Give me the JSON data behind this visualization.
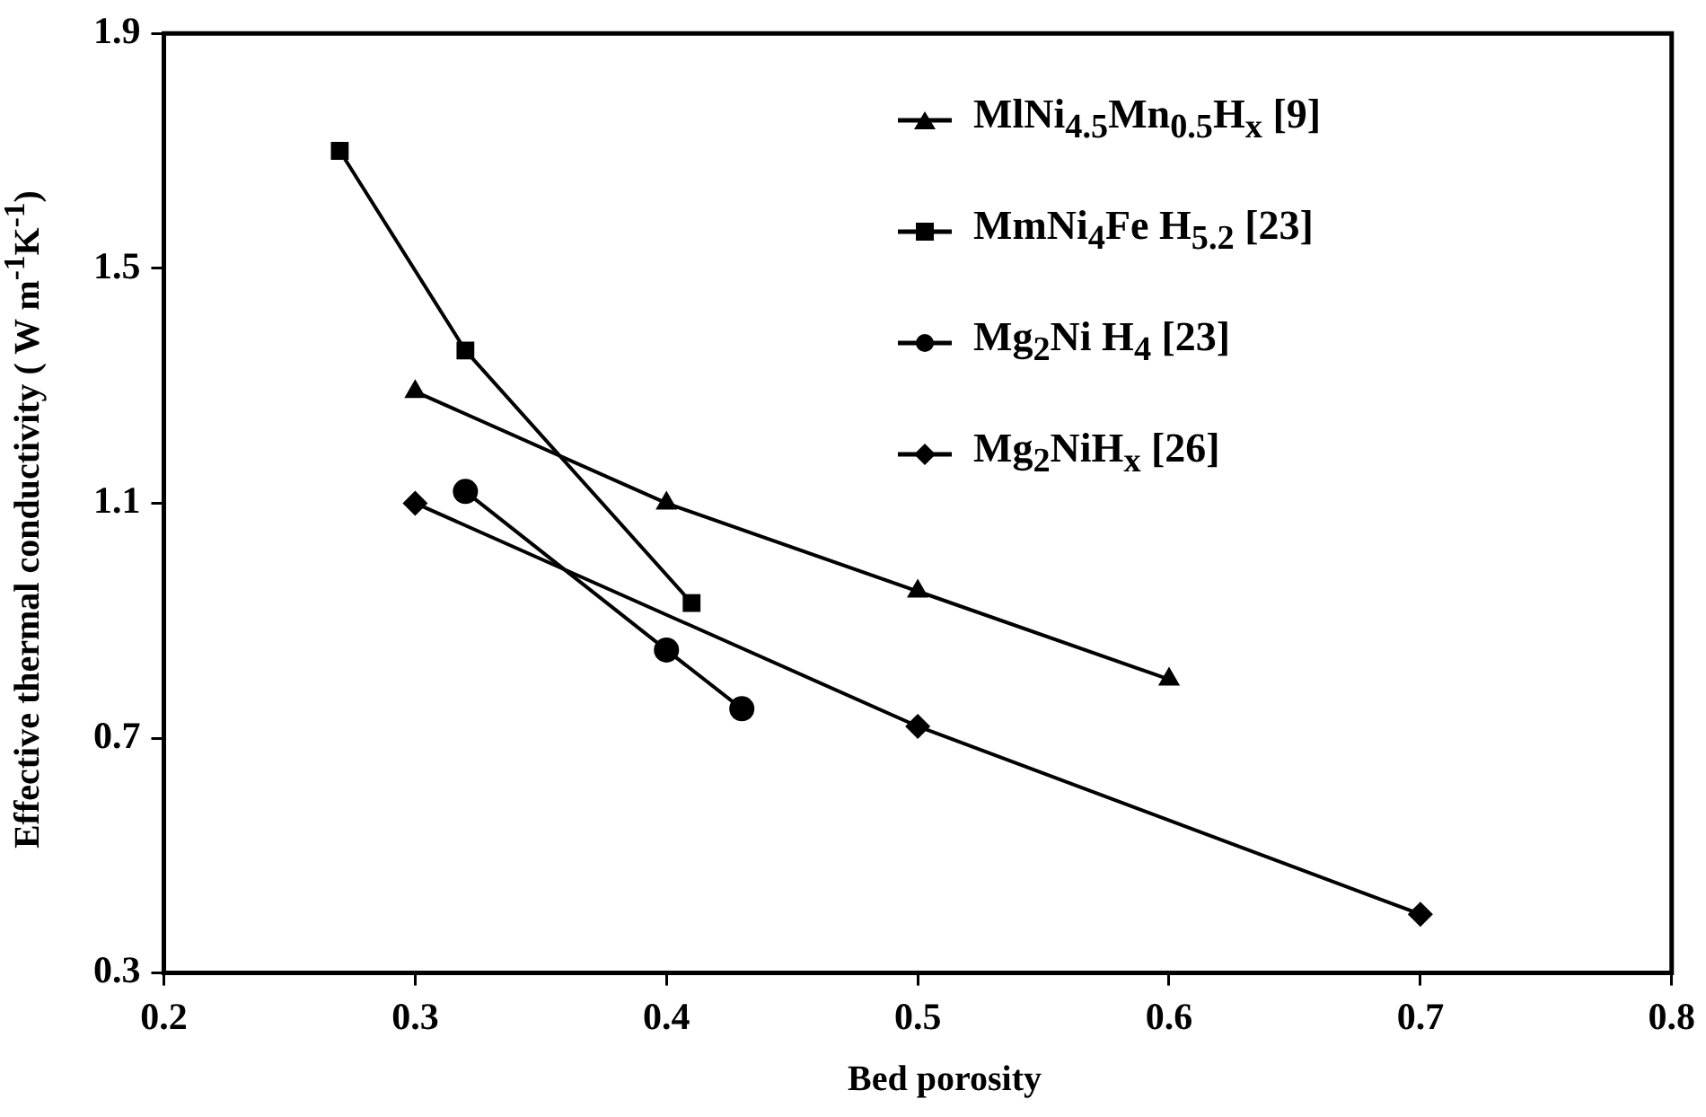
{
  "chart_data": {
    "type": "line",
    "xlabel": "Bed porosity",
    "ylabel": "Effective thermal conductivity ( W m$^{-1}$K$^{-1}$)",
    "xlim": [
      0.2,
      0.8
    ],
    "xticks": [
      0.2,
      0.3,
      0.4,
      0.5,
      0.6,
      0.7,
      0.8
    ],
    "ylim": [
      0.3,
      1.9
    ],
    "yticks": [
      0.3,
      0.7,
      1.1,
      1.5,
      1.9
    ],
    "grid": false,
    "legend": "top right",
    "line_style": "solid",
    "series": [
      {
        "name": "MlNi$_{4.5}$Mn$_{0.5}$H$_{x}$ [9]",
        "color": "#000000",
        "marker": "triangle",
        "x": [
          0.3,
          0.4,
          0.5,
          0.6
        ],
        "values": [
          1.29,
          1.1,
          0.95,
          0.8
        ]
      },
      {
        "name": "MmNi$_{4}$Fe H$_{5.2}$ [23]",
        "color": "#000000",
        "marker": "square",
        "x": [
          0.27,
          0.32,
          0.41
        ],
        "values": [
          1.7,
          1.36,
          0.93
        ]
      },
      {
        "name": "Mg$_{2}$Ni H$_{4}$ [23]",
        "color": "#000000",
        "marker": "circle",
        "x": [
          0.32,
          0.4,
          0.43
        ],
        "values": [
          1.12,
          0.85,
          0.75
        ]
      },
      {
        "name": "Mg$_{2}$NiH$_{x}$ [26]",
        "color": "#000000",
        "marker": "diamond",
        "x": [
          0.3,
          0.5,
          0.7
        ],
        "values": [
          1.1,
          0.72,
          0.4
        ]
      }
    ]
  }
}
